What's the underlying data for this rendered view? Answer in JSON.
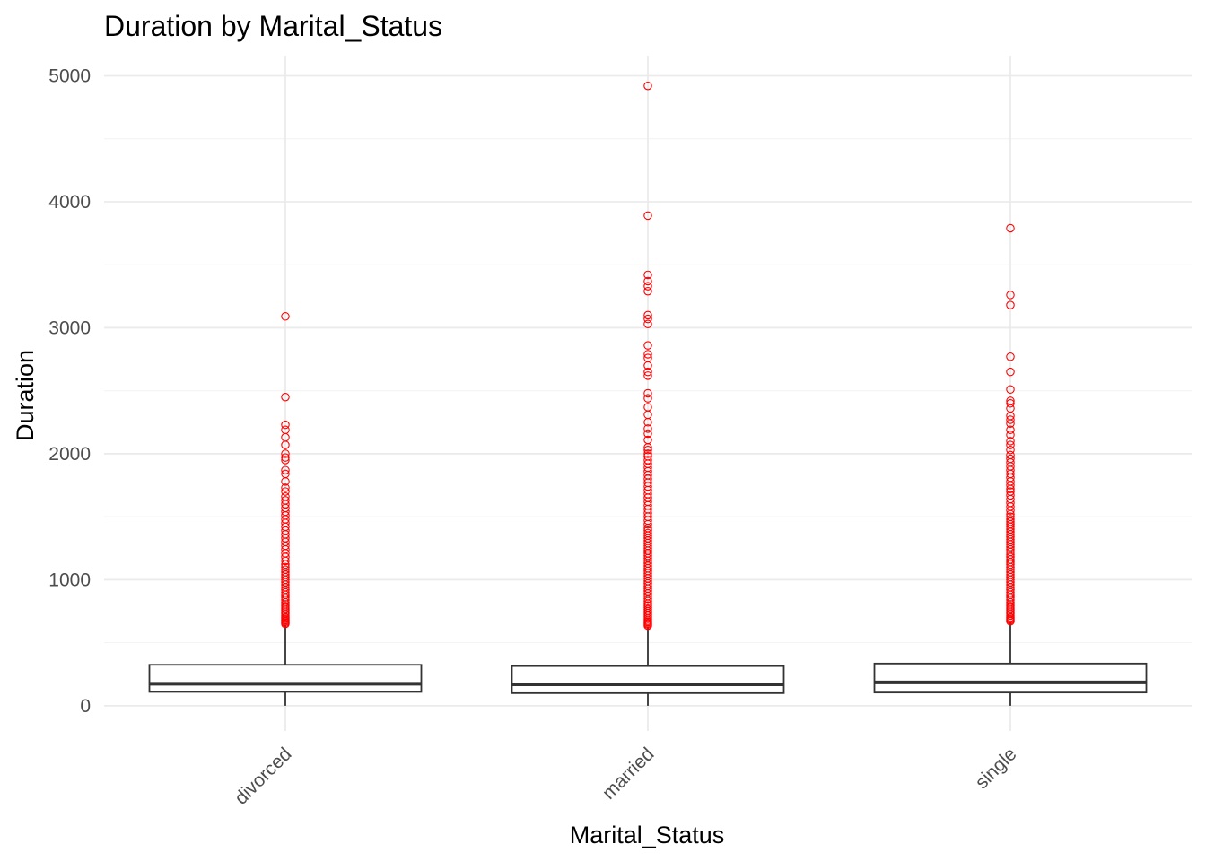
{
  "chart_data": {
    "type": "boxplot",
    "title": "Duration by Marital_Status",
    "xlabel": "Marital_Status",
    "ylabel": "Duration",
    "ylim": [
      -200,
      5160
    ],
    "yticks": [
      0,
      1000,
      2000,
      3000,
      4000,
      5000
    ],
    "grid": true,
    "outlier_color": "#ff0000",
    "box_color": "#333333",
    "categories": [
      "divorced",
      "married",
      "single"
    ],
    "boxes": [
      {
        "category": "divorced",
        "q1": 110,
        "median": 175,
        "q3": 325,
        "whisker_low": 0,
        "whisker_high": 645,
        "outliers": [
          650,
          660,
          670,
          680,
          690,
          700,
          715,
          730,
          745,
          760,
          775,
          790,
          805,
          820,
          840,
          860,
          880,
          900,
          920,
          940,
          960,
          980,
          1000,
          1020,
          1040,
          1060,
          1080,
          1100,
          1120,
          1150,
          1180,
          1210,
          1240,
          1270,
          1300,
          1330,
          1360,
          1390,
          1420,
          1450,
          1480,
          1510,
          1540,
          1570,
          1600,
          1630,
          1660,
          1700,
          1730,
          1780,
          1840,
          1870,
          1950,
          1970,
          2000,
          2070,
          2130,
          2190,
          2230,
          2450,
          3090
        ]
      },
      {
        "category": "married",
        "q1": 100,
        "median": 170,
        "q3": 315,
        "whisker_low": 0,
        "whisker_high": 630,
        "outliers": [
          635,
          645,
          655,
          665,
          675,
          690,
          705,
          720,
          735,
          750,
          765,
          780,
          795,
          810,
          830,
          850,
          870,
          890,
          910,
          930,
          950,
          970,
          990,
          1010,
          1030,
          1050,
          1070,
          1090,
          1110,
          1130,
          1150,
          1170,
          1190,
          1210,
          1230,
          1250,
          1270,
          1290,
          1310,
          1330,
          1350,
          1370,
          1390,
          1410,
          1440,
          1470,
          1500,
          1530,
          1560,
          1590,
          1620,
          1650,
          1680,
          1710,
          1740,
          1770,
          1800,
          1830,
          1860,
          1890,
          1920,
          1950,
          1980,
          2000,
          2030,
          2050,
          2110,
          2160,
          2200,
          2250,
          2310,
          2370,
          2440,
          2480,
          2620,
          2650,
          2700,
          2760,
          2790,
          2860,
          3030,
          3070,
          3100,
          3290,
          3330,
          3370,
          3420,
          3890,
          4920
        ]
      },
      {
        "category": "single",
        "q1": 105,
        "median": 185,
        "q3": 335,
        "whisker_low": 0,
        "whisker_high": 665,
        "outliers": [
          670,
          680,
          690,
          700,
          715,
          730,
          745,
          760,
          775,
          790,
          805,
          820,
          840,
          860,
          880,
          900,
          920,
          940,
          960,
          980,
          1000,
          1020,
          1040,
          1060,
          1080,
          1100,
          1120,
          1140,
          1160,
          1180,
          1200,
          1220,
          1240,
          1260,
          1280,
          1300,
          1320,
          1340,
          1360,
          1380,
          1400,
          1420,
          1440,
          1460,
          1480,
          1500,
          1520,
          1550,
          1580,
          1610,
          1640,
          1670,
          1700,
          1720,
          1750,
          1780,
          1810,
          1840,
          1870,
          1900,
          1930,
          1960,
          1990,
          2030,
          2070,
          2100,
          2150,
          2190,
          2240,
          2270,
          2300,
          2360,
          2400,
          2420,
          2510,
          2650,
          2770,
          3180,
          3260,
          3790
        ]
      }
    ]
  }
}
